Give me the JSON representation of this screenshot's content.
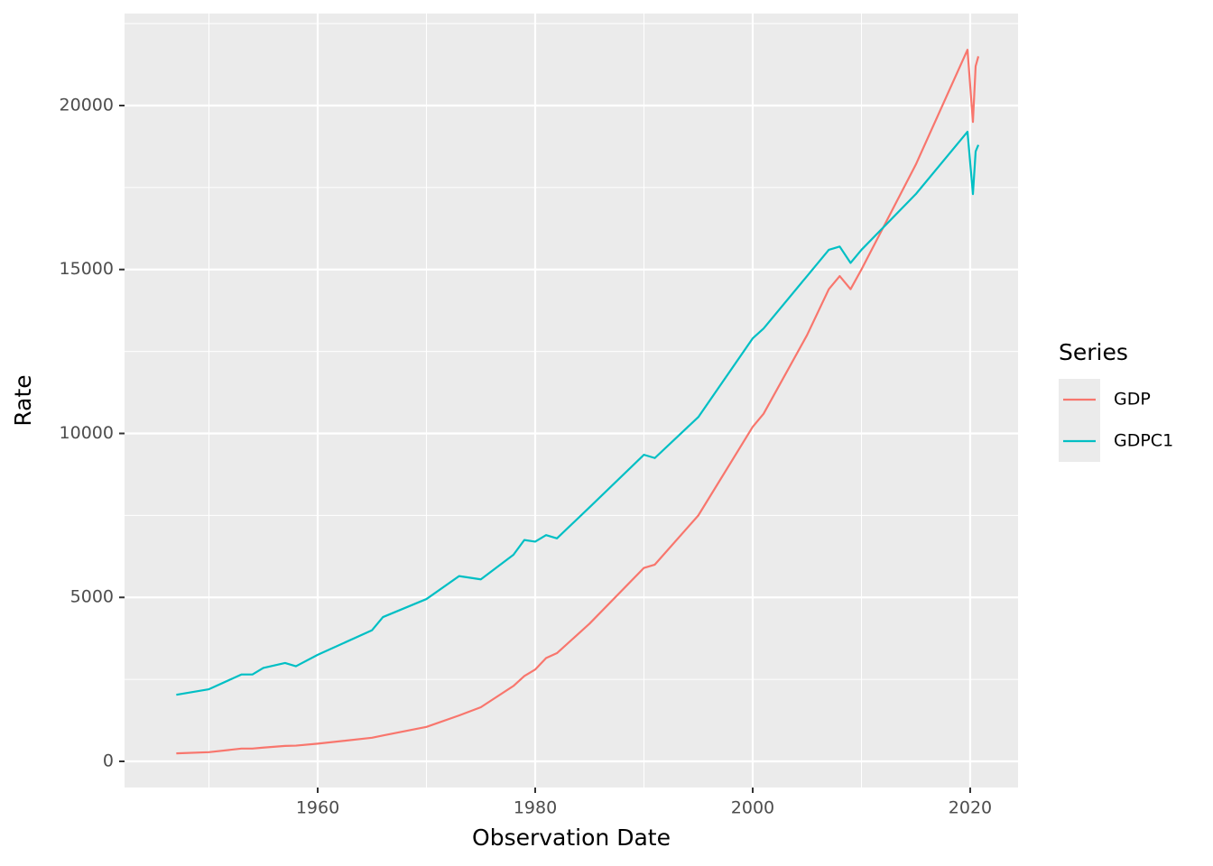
{
  "chart_data": {
    "type": "line",
    "x_label": "Observation Date",
    "y_label": "Rate",
    "legend_title": "Series",
    "legend_position": "right",
    "grid": true,
    "xlim": [
      1942.24,
      2024.4
    ],
    "xticks": [
      1960,
      1980,
      2000,
      2020
    ],
    "ylim": [
      -798,
      22806
    ],
    "yticks": [
      0,
      5000,
      10000,
      15000,
      20000
    ],
    "x": [
      1947,
      1950,
      1953,
      1954,
      1955,
      1957,
      1958,
      1960,
      1965,
      1966,
      1970,
      1973,
      1975,
      1978,
      1979,
      1980,
      1981,
      1982,
      1985,
      1990,
      1991,
      1995,
      2000,
      2001,
      2005,
      2007,
      2008,
      2009,
      2010,
      2015,
      2019.75,
      2020.25,
      2020.5,
      2020.75
    ],
    "series": [
      {
        "name": "GDP",
        "color": "#F8766D",
        "values": [
          244,
          280,
          390,
          390,
          420,
          470,
          480,
          540,
          720,
          790,
          1050,
          1400,
          1650,
          2300,
          2600,
          2800,
          3150,
          3300,
          4200,
          5900,
          6000,
          7500,
          10200,
          10600,
          13000,
          14400,
          14800,
          14400,
          15000,
          18200,
          21700,
          19500,
          21200,
          21500
        ]
      },
      {
        "name": "GDPC1",
        "color": "#00BFC4",
        "values": [
          2030,
          2200,
          2650,
          2650,
          2850,
          3000,
          2900,
          3250,
          4000,
          4400,
          4950,
          5650,
          5550,
          6300,
          6750,
          6700,
          6900,
          6800,
          7750,
          9350,
          9250,
          10500,
          12900,
          13200,
          14800,
          15600,
          15700,
          15200,
          15600,
          17300,
          19200,
          17300,
          18600,
          18800
        ]
      }
    ]
  }
}
